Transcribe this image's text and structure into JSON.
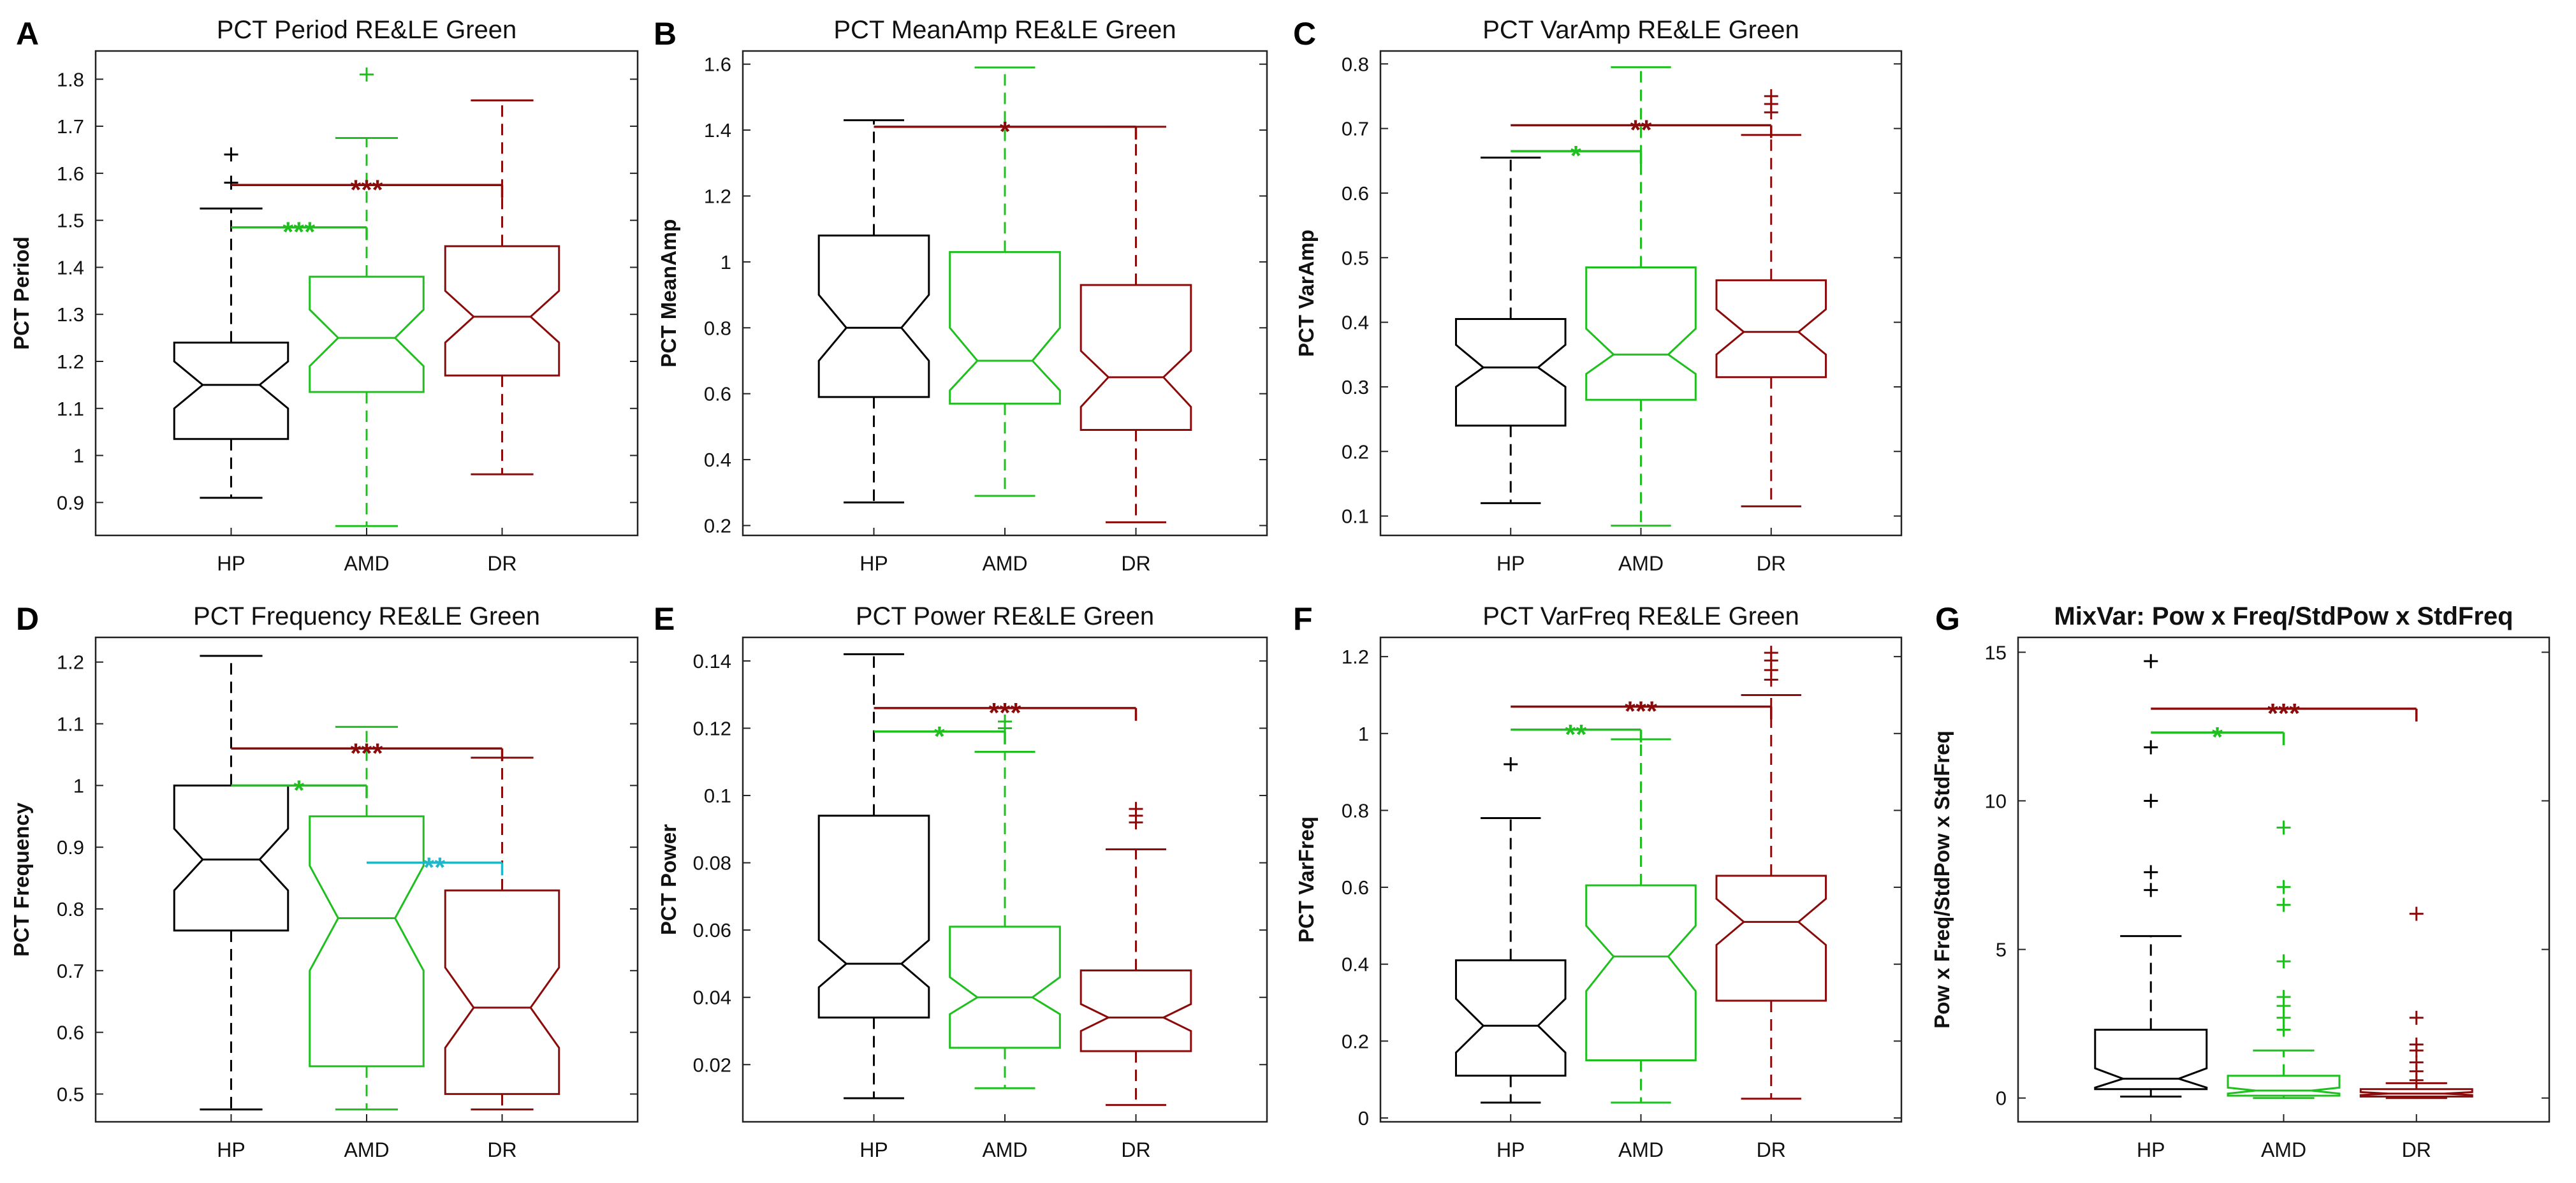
{
  "colors": {
    "HP": "#000000",
    "AMD": "#1fbf1f",
    "DR": "#8b0a0a",
    "cyan": "#1fb7c9"
  },
  "chart_data": [
    {
      "letter": "A",
      "type": "boxplot",
      "title": "PCT Period RE&LE  Green",
      "ylabel": "PCT Period",
      "categories": [
        "HP",
        "AMD",
        "DR"
      ],
      "ylim": [
        0.83,
        1.86
      ],
      "yticks": [
        0.9,
        1.0,
        1.1,
        1.2,
        1.3,
        1.4,
        1.5,
        1.6,
        1.7,
        1.8
      ],
      "ytick_labels": [
        "0.9",
        "1",
        "1.1",
        "1.2",
        "1.3",
        "1.4",
        "1.5",
        "1.6",
        "1.7",
        "1.8"
      ],
      "boxes": [
        {
          "min": 0.91,
          "q1": 1.035,
          "median": 1.15,
          "q3": 1.24,
          "max": 1.525,
          "notch_lo": 1.1,
          "notch_hi": 1.2,
          "outliers": [
            1.58,
            1.64
          ]
        },
        {
          "min": 0.85,
          "q1": 1.135,
          "median": 1.25,
          "q3": 1.38,
          "max": 1.675,
          "notch_lo": 1.19,
          "notch_hi": 1.31,
          "outliers": [
            1.81
          ]
        },
        {
          "min": 0.96,
          "q1": 1.17,
          "median": 1.295,
          "q3": 1.445,
          "max": 1.755,
          "notch_lo": 1.24,
          "notch_hi": 1.35,
          "outliers": []
        }
      ],
      "sig": [
        {
          "from": "HP",
          "to": "AMD",
          "y": 1.485,
          "label": "***",
          "color": "AMD"
        },
        {
          "from": "HP",
          "to": "DR",
          "y": 1.575,
          "label": "***",
          "color": "DR"
        }
      ]
    },
    {
      "letter": "B",
      "type": "boxplot",
      "title": "PCT MeanAmp RE&LE  Green",
      "ylabel": "PCT MeanAmp",
      "categories": [
        "HP",
        "AMD",
        "DR"
      ],
      "ylim": [
        0.17,
        1.64
      ],
      "yticks": [
        0.2,
        0.4,
        0.6,
        0.8,
        1.0,
        1.2,
        1.4,
        1.6
      ],
      "ytick_labels": [
        "0.2",
        "0.4",
        "0.6",
        "0.8",
        "1",
        "1.2",
        "1.4",
        "1.6"
      ],
      "boxes": [
        {
          "min": 0.27,
          "q1": 0.59,
          "median": 0.8,
          "q3": 1.08,
          "max": 1.43,
          "notch_lo": 0.7,
          "notch_hi": 0.9,
          "outliers": []
        },
        {
          "min": 0.29,
          "q1": 0.57,
          "median": 0.7,
          "q3": 1.03,
          "max": 1.59,
          "notch_lo": 0.61,
          "notch_hi": 0.8,
          "outliers": []
        },
        {
          "min": 0.21,
          "q1": 0.49,
          "median": 0.65,
          "q3": 0.93,
          "max": 1.41,
          "notch_lo": 0.56,
          "notch_hi": 0.73,
          "outliers": []
        }
      ],
      "sig": [
        {
          "from": "HP",
          "to": "DR",
          "y": 1.41,
          "label": "*",
          "color": "DR"
        }
      ]
    },
    {
      "letter": "C",
      "type": "boxplot",
      "title": "PCT VarAmp RE&LE  Green",
      "ylabel": "PCT VarAmp",
      "categories": [
        "HP",
        "AMD",
        "DR"
      ],
      "ylim": [
        0.07,
        0.82
      ],
      "yticks": [
        0.1,
        0.2,
        0.3,
        0.4,
        0.5,
        0.6,
        0.7,
        0.8
      ],
      "ytick_labels": [
        "0.1",
        "0.2",
        "0.3",
        "0.4",
        "0.5",
        "0.6",
        "0.7",
        "0.8"
      ],
      "boxes": [
        {
          "min": 0.12,
          "q1": 0.24,
          "median": 0.33,
          "q3": 0.405,
          "max": 0.655,
          "notch_lo": 0.3,
          "notch_hi": 0.365,
          "outliers": []
        },
        {
          "min": 0.085,
          "q1": 0.28,
          "median": 0.35,
          "q3": 0.485,
          "max": 0.795,
          "notch_lo": 0.32,
          "notch_hi": 0.39,
          "outliers": []
        },
        {
          "min": 0.115,
          "q1": 0.315,
          "median": 0.385,
          "q3": 0.465,
          "max": 0.69,
          "notch_lo": 0.35,
          "notch_hi": 0.42,
          "outliers": [
            0.725,
            0.738,
            0.75
          ]
        }
      ],
      "sig": [
        {
          "from": "HP",
          "to": "AMD",
          "y": 0.665,
          "label": "*",
          "color": "AMD"
        },
        {
          "from": "HP",
          "to": "DR",
          "y": 0.705,
          "label": "**",
          "color": "DR"
        }
      ]
    },
    {
      "letter": "D",
      "type": "boxplot",
      "title": "PCT Frequency RE&LE  Green",
      "ylabel": "PCT Frequency",
      "categories": [
        "HP",
        "AMD",
        "DR"
      ],
      "ylim": [
        0.455,
        1.24
      ],
      "yticks": [
        0.5,
        0.6,
        0.7,
        0.8,
        0.9,
        1.0,
        1.1,
        1.2
      ],
      "ytick_labels": [
        "0.5",
        "0.6",
        "0.7",
        "0.8",
        "0.9",
        "1",
        "1.1",
        "1.2"
      ],
      "boxes": [
        {
          "min": 0.475,
          "q1": 0.765,
          "median": 0.88,
          "q3": 1.0,
          "max": 1.21,
          "notch_lo": 0.83,
          "notch_hi": 0.93,
          "outliers": []
        },
        {
          "min": 0.475,
          "q1": 0.545,
          "median": 0.785,
          "q3": 0.95,
          "max": 1.095,
          "notch_lo": 0.7,
          "notch_hi": 0.87,
          "outliers": []
        },
        {
          "min": 0.475,
          "q1": 0.5,
          "median": 0.64,
          "q3": 0.83,
          "max": 1.045,
          "notch_lo": 0.575,
          "notch_hi": 0.705,
          "outliers": []
        }
      ],
      "sig": [
        {
          "from": "HP",
          "to": "AMD",
          "y": 1.0,
          "label": "*",
          "color": "AMD"
        },
        {
          "from": "HP",
          "to": "DR",
          "y": 1.06,
          "label": "***",
          "color": "DR"
        },
        {
          "from": "AMD",
          "to": "DR",
          "y": 0.875,
          "label": "**",
          "color": "cyan"
        }
      ]
    },
    {
      "letter": "E",
      "type": "boxplot",
      "title": "PCT Power RE&LE  Green",
      "ylabel": "PCT Power",
      "categories": [
        "HP",
        "AMD",
        "DR"
      ],
      "ylim": [
        0.003,
        0.147
      ],
      "yticks": [
        0.02,
        0.04,
        0.06,
        0.08,
        0.1,
        0.12,
        0.14
      ],
      "ytick_labels": [
        "0.02",
        "0.04",
        "0.06",
        "0.08",
        "0.1",
        "0.12",
        "0.14"
      ],
      "boxes": [
        {
          "min": 0.01,
          "q1": 0.034,
          "median": 0.05,
          "q3": 0.094,
          "max": 0.142,
          "notch_lo": 0.043,
          "notch_hi": 0.057,
          "outliers": []
        },
        {
          "min": 0.013,
          "q1": 0.025,
          "median": 0.04,
          "q3": 0.061,
          "max": 0.113,
          "notch_lo": 0.035,
          "notch_hi": 0.046,
          "outliers": [
            0.12,
            0.122
          ]
        },
        {
          "min": 0.008,
          "q1": 0.024,
          "median": 0.034,
          "q3": 0.048,
          "max": 0.084,
          "notch_lo": 0.03,
          "notch_hi": 0.038,
          "outliers": [
            0.092,
            0.094,
            0.096
          ]
        }
      ],
      "sig": [
        {
          "from": "HP",
          "to": "AMD",
          "y": 0.119,
          "label": "*",
          "color": "AMD"
        },
        {
          "from": "HP",
          "to": "DR",
          "y": 0.126,
          "label": "***",
          "color": "DR"
        }
      ]
    },
    {
      "letter": "F",
      "type": "boxplot",
      "title": "PCT VarFreq RE&LE  Green",
      "ylabel": "PCT VarFreq",
      "categories": [
        "HP",
        "AMD",
        "DR"
      ],
      "ylim": [
        -0.01,
        1.25
      ],
      "yticks": [
        0,
        0.2,
        0.4,
        0.6,
        0.8,
        1.0,
        1.2
      ],
      "ytick_labels": [
        "0",
        "0.2",
        "0.4",
        "0.6",
        "0.8",
        "1",
        "1.2"
      ],
      "boxes": [
        {
          "min": 0.04,
          "q1": 0.11,
          "median": 0.24,
          "q3": 0.41,
          "max": 0.78,
          "notch_lo": 0.17,
          "notch_hi": 0.31,
          "outliers": [
            0.92
          ]
        },
        {
          "min": 0.04,
          "q1": 0.15,
          "median": 0.42,
          "q3": 0.605,
          "max": 0.985,
          "notch_lo": 0.33,
          "notch_hi": 0.5,
          "outliers": []
        },
        {
          "min": 0.05,
          "q1": 0.305,
          "median": 0.51,
          "q3": 0.63,
          "max": 1.1,
          "notch_lo": 0.45,
          "notch_hi": 0.57,
          "outliers": [
            1.14,
            1.165,
            1.19,
            1.21
          ]
        }
      ],
      "sig": [
        {
          "from": "HP",
          "to": "AMD",
          "y": 1.01,
          "label": "**",
          "color": "AMD"
        },
        {
          "from": "HP",
          "to": "DR",
          "y": 1.07,
          "label": "***",
          "color": "DR"
        }
      ]
    },
    {
      "letter": "G",
      "type": "boxplot",
      "title": "MixVar: Pow x Freq/StdPow x StdFreq",
      "ylabel": "Pow x Freq/StdPow x StdFreq",
      "categories": [
        "HP",
        "AMD",
        "DR"
      ],
      "ylim": [
        -0.8,
        15.5
      ],
      "yticks": [
        0,
        5,
        10,
        15
      ],
      "ytick_labels": [
        "0",
        "5",
        "10",
        "15"
      ],
      "boxes": [
        {
          "min": 0.05,
          "q1": 0.3,
          "median": 0.65,
          "q3": 2.3,
          "max": 5.45,
          "notch_lo": 0.35,
          "notch_hi": 1.0,
          "outliers": [
            7.0,
            7.6,
            10.0,
            11.8,
            14.7
          ]
        },
        {
          "min": 0.0,
          "q1": 0.08,
          "median": 0.25,
          "q3": 0.75,
          "max": 1.6,
          "notch_lo": 0.15,
          "notch_hi": 0.35,
          "outliers": [
            2.3,
            2.7,
            3.1,
            3.4,
            4.6,
            6.5,
            7.1,
            9.1
          ]
        },
        {
          "min": 0.0,
          "q1": 0.05,
          "median": 0.15,
          "q3": 0.3,
          "max": 0.5,
          "notch_lo": 0.1,
          "notch_hi": 0.2,
          "outliers": [
            0.6,
            0.9,
            1.2,
            1.6,
            1.8,
            2.7,
            6.2
          ]
        }
      ],
      "sig": [
        {
          "from": "HP",
          "to": "AMD",
          "y": 12.3,
          "label": "*",
          "color": "AMD"
        },
        {
          "from": "HP",
          "to": "DR",
          "y": 13.1,
          "label": "***",
          "color": "DR"
        }
      ]
    }
  ]
}
